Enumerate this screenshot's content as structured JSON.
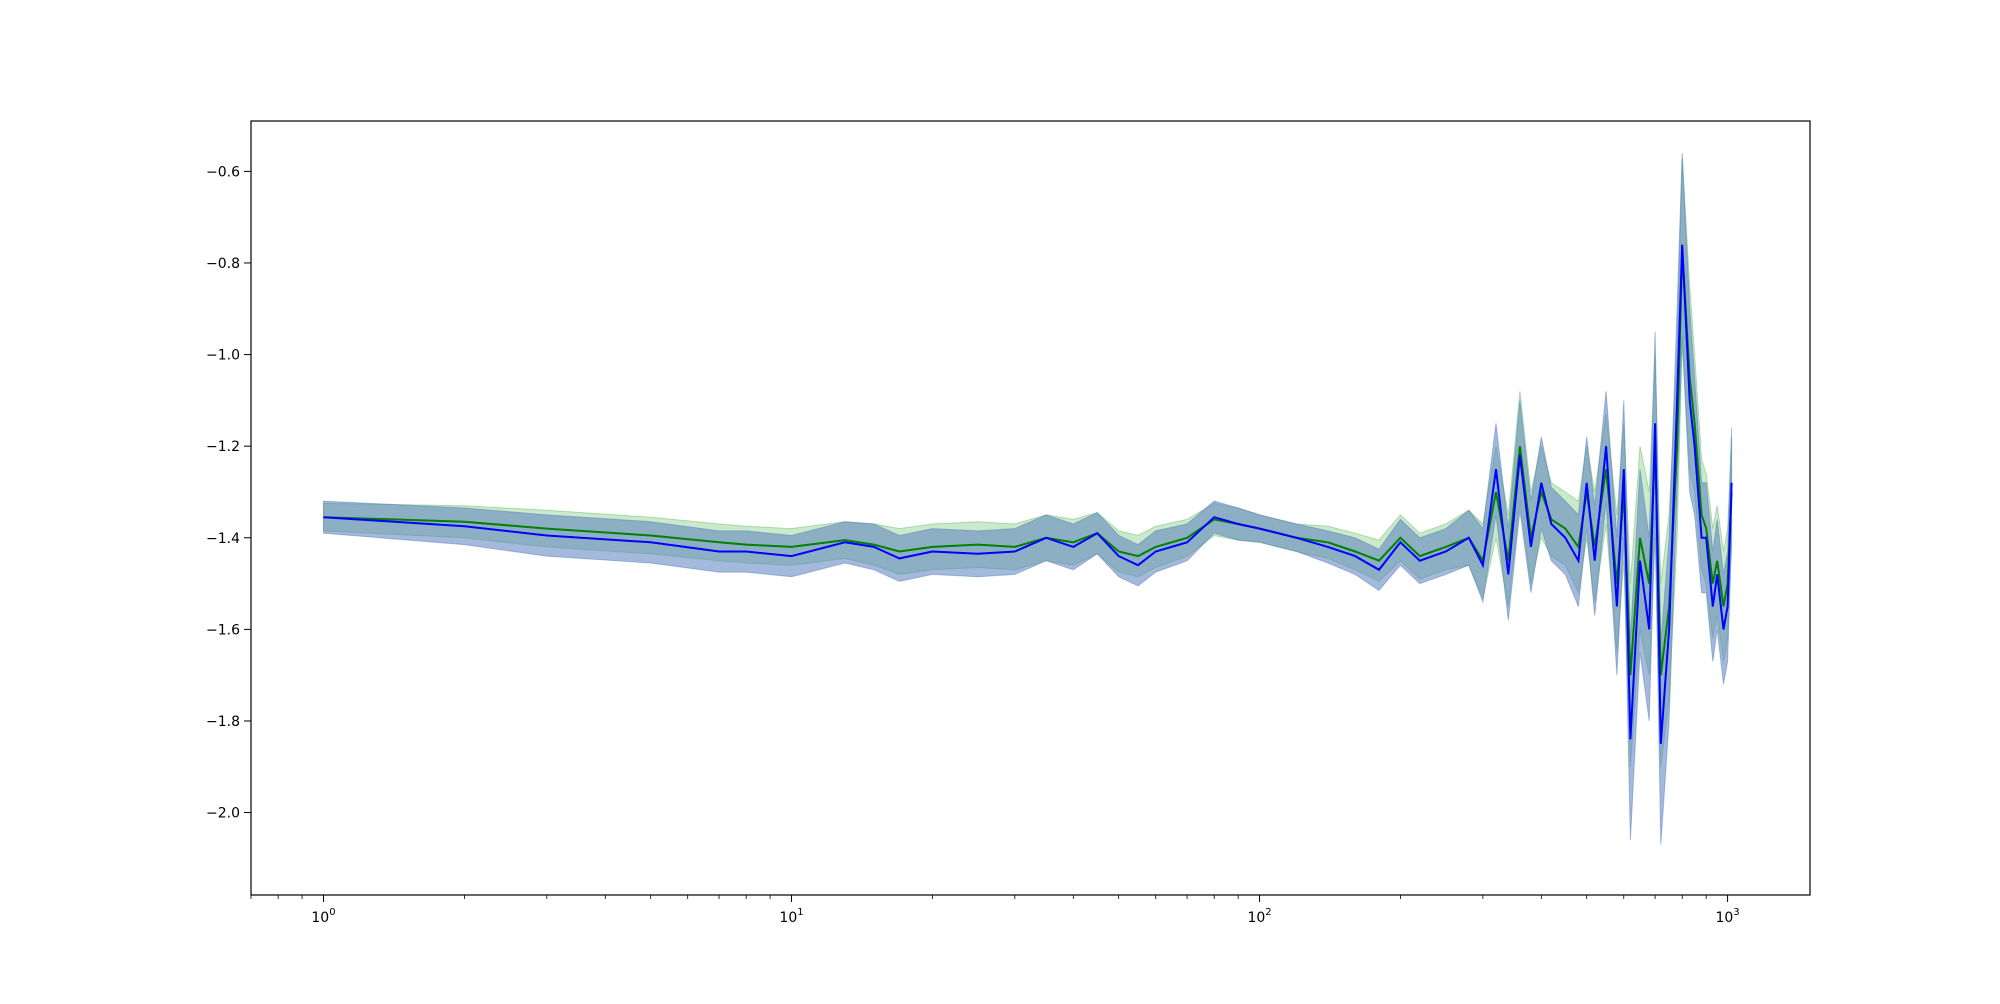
{
  "chart_data": {
    "type": "line",
    "title": "",
    "xlabel": "",
    "ylabel": "",
    "x_scale": "log",
    "xlim": [
      0.7,
      1500
    ],
    "ylim": [
      -2.18,
      -0.49
    ],
    "grid": false,
    "legend": "none",
    "x_ticks": [
      {
        "value": 1,
        "base": "10",
        "exp": "0"
      },
      {
        "value": 10,
        "base": "10",
        "exp": "1"
      },
      {
        "value": 100,
        "base": "10",
        "exp": "2"
      },
      {
        "value": 1000,
        "base": "10",
        "exp": "3"
      }
    ],
    "y_ticks": [
      {
        "value": -0.6,
        "label": "−0.6"
      },
      {
        "value": -0.8,
        "label": "−0.8"
      },
      {
        "value": -1.0,
        "label": "−1.0"
      },
      {
        "value": -1.2,
        "label": "−1.2"
      },
      {
        "value": -1.4,
        "label": "−1.4"
      },
      {
        "value": -1.6,
        "label": "−1.6"
      },
      {
        "value": -1.8,
        "label": "−1.8"
      },
      {
        "value": -2.0,
        "label": "−2.0"
      }
    ],
    "series": [
      {
        "color": "#008000",
        "band_color": "#6abf6a",
        "x": [
          1,
          2,
          3,
          5,
          7,
          8,
          10,
          13,
          15,
          17,
          20,
          25,
          30,
          35,
          40,
          45,
          50,
          55,
          60,
          70,
          80,
          90,
          100,
          120,
          140,
          160,
          180,
          200,
          220,
          250,
          280,
          300,
          320,
          340,
          360,
          380,
          400,
          420,
          450,
          480,
          500,
          520,
          550,
          580,
          600,
          620,
          650,
          680,
          700,
          720,
          750,
          780,
          800,
          830,
          850,
          880,
          900,
          930,
          950,
          980,
          1000,
          1020
        ],
        "y": [
          -1.355,
          -1.365,
          -1.38,
          -1.395,
          -1.41,
          -1.415,
          -1.42,
          -1.405,
          -1.415,
          -1.43,
          -1.42,
          -1.415,
          -1.42,
          -1.4,
          -1.41,
          -1.39,
          -1.43,
          -1.44,
          -1.42,
          -1.4,
          -1.36,
          -1.37,
          -1.38,
          -1.4,
          -1.41,
          -1.43,
          -1.45,
          -1.4,
          -1.44,
          -1.42,
          -1.4,
          -1.45,
          -1.3,
          -1.45,
          -1.2,
          -1.4,
          -1.3,
          -1.36,
          -1.38,
          -1.42,
          -1.3,
          -1.42,
          -1.25,
          -1.5,
          -1.3,
          -1.7,
          -1.4,
          -1.5,
          -1.2,
          -1.7,
          -1.55,
          -1.2,
          -0.77,
          -1.05,
          -1.15,
          -1.35,
          -1.38,
          -1.5,
          -1.45,
          -1.55,
          -1.5,
          -1.3
        ],
        "band": [
          0.03,
          0.035,
          0.04,
          0.04,
          0.04,
          0.04,
          0.04,
          0.04,
          0.045,
          0.05,
          0.05,
          0.05,
          0.05,
          0.05,
          0.05,
          0.045,
          0.045,
          0.045,
          0.045,
          0.04,
          0.035,
          0.035,
          0.03,
          0.03,
          0.035,
          0.04,
          0.045,
          0.05,
          0.05,
          0.05,
          0.06,
          0.08,
          0.1,
          0.1,
          0.12,
          0.1,
          0.1,
          0.08,
          0.08,
          0.1,
          0.1,
          0.12,
          0.12,
          0.15,
          0.15,
          0.2,
          0.2,
          0.2,
          0.2,
          0.2,
          0.2,
          0.2,
          0.2,
          0.2,
          0.15,
          0.12,
          0.12,
          0.12,
          0.12,
          0.12,
          0.12,
          0.12
        ]
      },
      {
        "color": "#0000ff",
        "band_color": "#5a7fbf",
        "x": [
          1,
          2,
          3,
          5,
          7,
          8,
          10,
          13,
          15,
          17,
          20,
          25,
          30,
          35,
          40,
          45,
          50,
          55,
          60,
          70,
          80,
          90,
          100,
          120,
          140,
          160,
          180,
          200,
          220,
          250,
          280,
          300,
          320,
          340,
          360,
          380,
          400,
          420,
          450,
          480,
          500,
          520,
          550,
          580,
          600,
          620,
          650,
          680,
          700,
          720,
          750,
          780,
          800,
          830,
          850,
          880,
          900,
          930,
          950,
          980,
          1000,
          1020
        ],
        "y": [
          -1.355,
          -1.375,
          -1.395,
          -1.41,
          -1.43,
          -1.43,
          -1.44,
          -1.41,
          -1.42,
          -1.445,
          -1.43,
          -1.435,
          -1.43,
          -1.4,
          -1.42,
          -1.39,
          -1.44,
          -1.46,
          -1.43,
          -1.41,
          -1.355,
          -1.37,
          -1.38,
          -1.4,
          -1.42,
          -1.44,
          -1.47,
          -1.41,
          -1.45,
          -1.43,
          -1.4,
          -1.46,
          -1.25,
          -1.48,
          -1.22,
          -1.42,
          -1.28,
          -1.37,
          -1.4,
          -1.45,
          -1.28,
          -1.45,
          -1.2,
          -1.55,
          -1.25,
          -1.84,
          -1.45,
          -1.6,
          -1.15,
          -1.85,
          -1.6,
          -1.1,
          -0.76,
          -1.1,
          -1.2,
          -1.4,
          -1.4,
          -1.55,
          -1.48,
          -1.6,
          -1.55,
          -1.28
        ],
        "band": [
          0.035,
          0.04,
          0.045,
          0.045,
          0.045,
          0.045,
          0.045,
          0.045,
          0.05,
          0.05,
          0.05,
          0.05,
          0.05,
          0.05,
          0.05,
          0.045,
          0.045,
          0.045,
          0.045,
          0.04,
          0.035,
          0.035,
          0.03,
          0.03,
          0.035,
          0.04,
          0.045,
          0.05,
          0.05,
          0.05,
          0.06,
          0.08,
          0.1,
          0.1,
          0.12,
          0.1,
          0.1,
          0.08,
          0.08,
          0.1,
          0.1,
          0.12,
          0.12,
          0.15,
          0.15,
          0.22,
          0.2,
          0.2,
          0.2,
          0.22,
          0.2,
          0.2,
          0.2,
          0.2,
          0.15,
          0.12,
          0.12,
          0.12,
          0.12,
          0.12,
          0.12,
          0.12
        ]
      }
    ]
  }
}
